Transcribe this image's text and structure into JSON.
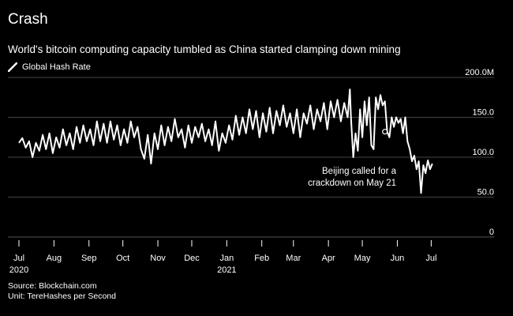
{
  "chart_data": {
    "type": "line",
    "title": "Crash",
    "subtitle": "World's bitcoin computing capacity tumbled as China started clamping down mining",
    "legend": "Global Hash Rate",
    "source": "Source: Blockchain.com",
    "unit": "Unit: TereHashes per Second",
    "ylim": [
      0,
      200
    ],
    "yticks": [
      {
        "value": 200,
        "label": "200.0M"
      },
      {
        "value": 150,
        "label": "150.0"
      },
      {
        "value": 100,
        "label": "100.0"
      },
      {
        "value": 50,
        "label": "50.0"
      },
      {
        "value": 0,
        "label": "0"
      }
    ],
    "x_range_days": [
      0,
      385
    ],
    "xticks": [
      {
        "day": 0,
        "label": "Jul",
        "sublabel": "2020"
      },
      {
        "day": 31,
        "label": "Aug",
        "sublabel": ""
      },
      {
        "day": 62,
        "label": "Sep",
        "sublabel": ""
      },
      {
        "day": 92,
        "label": "Oct",
        "sublabel": ""
      },
      {
        "day": 123,
        "label": "Nov",
        "sublabel": ""
      },
      {
        "day": 153,
        "label": "Dec",
        "sublabel": ""
      },
      {
        "day": 184,
        "label": "Jan",
        "sublabel": "2021"
      },
      {
        "day": 215,
        "label": "Feb",
        "sublabel": ""
      },
      {
        "day": 243,
        "label": "Mar",
        "sublabel": ""
      },
      {
        "day": 274,
        "label": "Apr",
        "sublabel": ""
      },
      {
        "day": 304,
        "label": "May",
        "sublabel": ""
      },
      {
        "day": 335,
        "label": "Jun",
        "sublabel": ""
      },
      {
        "day": 365,
        "label": "Jul",
        "sublabel": ""
      }
    ],
    "annotation": {
      "line1": "Beijing called for a",
      "line2": "crackdown on May 21",
      "day": 324,
      "value": 132
    },
    "series": [
      {
        "name": "Global Hash Rate",
        "color": "#ffffff",
        "points": [
          [
            0,
            118
          ],
          [
            3,
            124
          ],
          [
            6,
            112
          ],
          [
            9,
            120
          ],
          [
            12,
            100
          ],
          [
            15,
            118
          ],
          [
            18,
            108
          ],
          [
            21,
            128
          ],
          [
            24,
            110
          ],
          [
            27,
            130
          ],
          [
            30,
            105
          ],
          [
            33,
            125
          ],
          [
            36,
            112
          ],
          [
            39,
            135
          ],
          [
            42,
            115
          ],
          [
            45,
            130
          ],
          [
            48,
            110
          ],
          [
            51,
            138
          ],
          [
            54,
            118
          ],
          [
            57,
            140
          ],
          [
            60,
            120
          ],
          [
            63,
            135
          ],
          [
            66,
            115
          ],
          [
            69,
            145
          ],
          [
            72,
            120
          ],
          [
            75,
            142
          ],
          [
            78,
            118
          ],
          [
            81,
            145
          ],
          [
            84,
            122
          ],
          [
            87,
            140
          ],
          [
            90,
            115
          ],
          [
            93,
            135
          ],
          [
            96,
            118
          ],
          [
            99,
            145
          ],
          [
            102,
            125
          ],
          [
            105,
            138
          ],
          [
            108,
            110
          ],
          [
            111,
            98
          ],
          [
            114,
            128
          ],
          [
            117,
            92
          ],
          [
            120,
            130
          ],
          [
            123,
            110
          ],
          [
            126,
            140
          ],
          [
            129,
            115
          ],
          [
            132,
            138
          ],
          [
            135,
            120
          ],
          [
            138,
            148
          ],
          [
            141,
            125
          ],
          [
            144,
            135
          ],
          [
            147,
            112
          ],
          [
            150,
            140
          ],
          [
            153,
            118
          ],
          [
            156,
            138
          ],
          [
            159,
            125
          ],
          [
            162,
            142
          ],
          [
            165,
            120
          ],
          [
            168,
            135
          ],
          [
            171,
            115
          ],
          [
            174,
            145
          ],
          [
            177,
            108
          ],
          [
            180,
            130
          ],
          [
            183,
            118
          ],
          [
            186,
            140
          ],
          [
            189,
            122
          ],
          [
            192,
            152
          ],
          [
            195,
            128
          ],
          [
            198,
            150
          ],
          [
            201,
            130
          ],
          [
            204,
            160
          ],
          [
            207,
            135
          ],
          [
            210,
            158
          ],
          [
            213,
            125
          ],
          [
            216,
            155
          ],
          [
            219,
            132
          ],
          [
            222,
            162
          ],
          [
            225,
            130
          ],
          [
            228,
            158
          ],
          [
            231,
            140
          ],
          [
            234,
            165
          ],
          [
            237,
            138
          ],
          [
            240,
            155
          ],
          [
            243,
            130
          ],
          [
            246,
            160
          ],
          [
            249,
            125
          ],
          [
            252,
            155
          ],
          [
            255,
            142
          ],
          [
            258,
            165
          ],
          [
            261,
            135
          ],
          [
            264,
            160
          ],
          [
            267,
            145
          ],
          [
            270,
            168
          ],
          [
            273,
            135
          ],
          [
            276,
            170
          ],
          [
            279,
            150
          ],
          [
            282,
            172
          ],
          [
            285,
            145
          ],
          [
            288,
            168
          ],
          [
            291,
            150
          ],
          [
            293,
            185
          ],
          [
            294,
            148
          ],
          [
            296,
            100
          ],
          [
            298,
            130
          ],
          [
            300,
            108
          ],
          [
            302,
            160
          ],
          [
            304,
            125
          ],
          [
            306,
            170
          ],
          [
            308,
            140
          ],
          [
            310,
            175
          ],
          [
            312,
            115
          ],
          [
            314,
            110
          ],
          [
            316,
            175
          ],
          [
            318,
            160
          ],
          [
            320,
            178
          ],
          [
            322,
            165
          ],
          [
            324,
            170
          ],
          [
            326,
            132
          ],
          [
            328,
            125
          ],
          [
            330,
            150
          ],
          [
            332,
            138
          ],
          [
            334,
            150
          ],
          [
            336,
            143
          ],
          [
            338,
            148
          ],
          [
            340,
            130
          ],
          [
            342,
            150
          ],
          [
            344,
            120
          ],
          [
            346,
            110
          ],
          [
            348,
            95
          ],
          [
            350,
            102
          ],
          [
            352,
            85
          ],
          [
            354,
            95
          ],
          [
            356,
            55
          ],
          [
            358,
            90
          ],
          [
            360,
            80
          ],
          [
            362,
            96
          ],
          [
            364,
            85
          ],
          [
            366,
            92
          ]
        ]
      }
    ]
  }
}
